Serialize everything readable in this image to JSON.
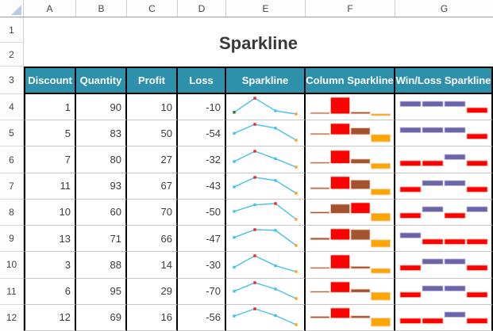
{
  "sheet": {
    "column_headers": [
      "A",
      "B",
      "C",
      "D",
      "E",
      "F",
      "G"
    ],
    "row_headers": [
      "1",
      "2",
      "3",
      "4",
      "5",
      "6",
      "7",
      "8",
      "9",
      "10",
      "11",
      "12"
    ]
  },
  "table": {
    "title": "Sparkline",
    "column_titles": [
      "Discount",
      "Quantity",
      "Profit",
      "Loss",
      "Sparkline",
      "Column Sparkline",
      "Win/Loss Sparkline"
    ],
    "rows": [
      {
        "discount": 1,
        "quantity": 90,
        "profit": 10,
        "loss": -10,
        "winloss": [
          1,
          1,
          1,
          -1
        ],
        "first_green": true
      },
      {
        "discount": 5,
        "quantity": 83,
        "profit": 50,
        "loss": -54,
        "winloss": [
          1,
          1,
          1,
          -1
        ]
      },
      {
        "discount": 7,
        "quantity": 80,
        "profit": 27,
        "loss": -32,
        "winloss": [
          -1,
          -1,
          1,
          -1
        ]
      },
      {
        "discount": 11,
        "quantity": 93,
        "profit": 67,
        "loss": -43,
        "winloss": [
          -1,
          1,
          1,
          -1
        ]
      },
      {
        "discount": 10,
        "quantity": 60,
        "profit": 70,
        "loss": -50,
        "winloss": [
          -1,
          1,
          -1,
          1
        ]
      },
      {
        "discount": 13,
        "quantity": 71,
        "profit": 66,
        "loss": -47,
        "winloss": [
          1,
          -1,
          -1,
          -1
        ]
      },
      {
        "discount": 3,
        "quantity": 88,
        "profit": 14,
        "loss": -30,
        "winloss": [
          -1,
          1,
          1,
          -1
        ]
      },
      {
        "discount": 6,
        "quantity": 95,
        "profit": 29,
        "loss": -70,
        "winloss": [
          -1,
          1,
          1,
          -1
        ]
      },
      {
        "discount": 12,
        "quantity": 69,
        "profit": 16,
        "loss": -56,
        "winloss": [
          -1,
          -1,
          1,
          -1
        ]
      }
    ]
  },
  "colors": {
    "header_fill": "#2d91ac",
    "header_text": "#ffffff",
    "line": "#45c1f0",
    "marker": "#45c1f0",
    "marker_high": "#ff1f1f",
    "marker_low": "#ffa41c",
    "marker_first": "#1e7b2f",
    "bar_normal": "#a5522e",
    "bar_high": "#ff0000",
    "bar_low": "#ffa500",
    "bar_stroke": "#f0cbb8",
    "win": "#6b64a9",
    "win_stroke": "#c3bfdc",
    "loss": "#ff0000",
    "loss_stroke": "#ffb09e"
  }
}
